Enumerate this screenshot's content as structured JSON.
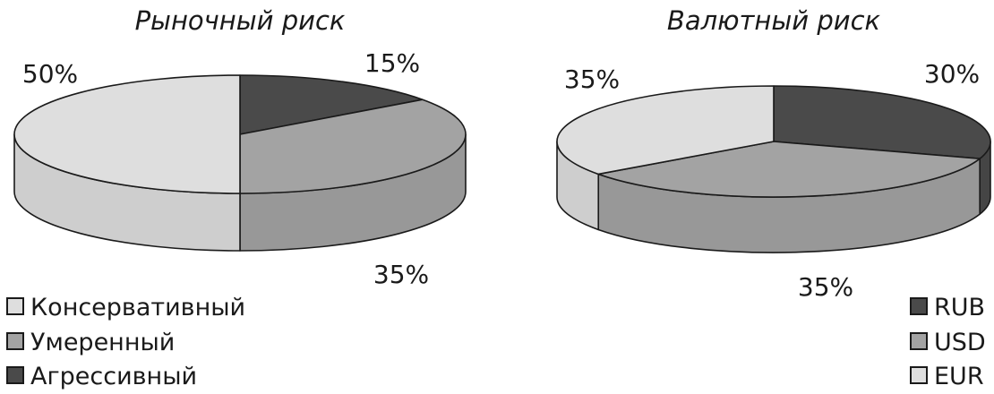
{
  "chart_data": [
    {
      "type": "pie",
      "style": "3d",
      "title": "Рыночный риск",
      "slices": [
        {
          "label": "Агрессивный",
          "value": 15,
          "value_label": "15%",
          "color": "#4a4a4a"
        },
        {
          "label": "Умеренный",
          "value": 35,
          "value_label": "35%",
          "color": "#a3a3a3"
        },
        {
          "label": "Консервативный",
          "value": 50,
          "value_label": "50%",
          "color": "#dedede"
        }
      ],
      "legend": {
        "placement": "bottom-left",
        "items": [
          {
            "label": "Консервативный",
            "color": "#dedede"
          },
          {
            "label": "Умеренный",
            "color": "#a3a3a3"
          },
          {
            "label": "Агрессивный",
            "color": "#4a4a4a"
          }
        ]
      }
    },
    {
      "type": "pie",
      "style": "3d",
      "title": "Валютный риск",
      "slices": [
        {
          "label": "RUB",
          "value": 30,
          "value_label": "30%",
          "color": "#4a4a4a"
        },
        {
          "label": "USD",
          "value": 35,
          "value_label": "35%",
          "color": "#a3a3a3"
        },
        {
          "label": "EUR",
          "value": 35,
          "value_label": "35%",
          "color": "#dedede"
        }
      ],
      "legend": {
        "placement": "bottom-right",
        "items": [
          {
            "label": "RUB",
            "color": "#4a4a4a"
          },
          {
            "label": "USD",
            "color": "#a3a3a3"
          },
          {
            "label": "EUR",
            "color": "#dedede"
          }
        ]
      }
    }
  ],
  "colors": {
    "outline": "#1a1a1a",
    "background": "#ffffff"
  }
}
